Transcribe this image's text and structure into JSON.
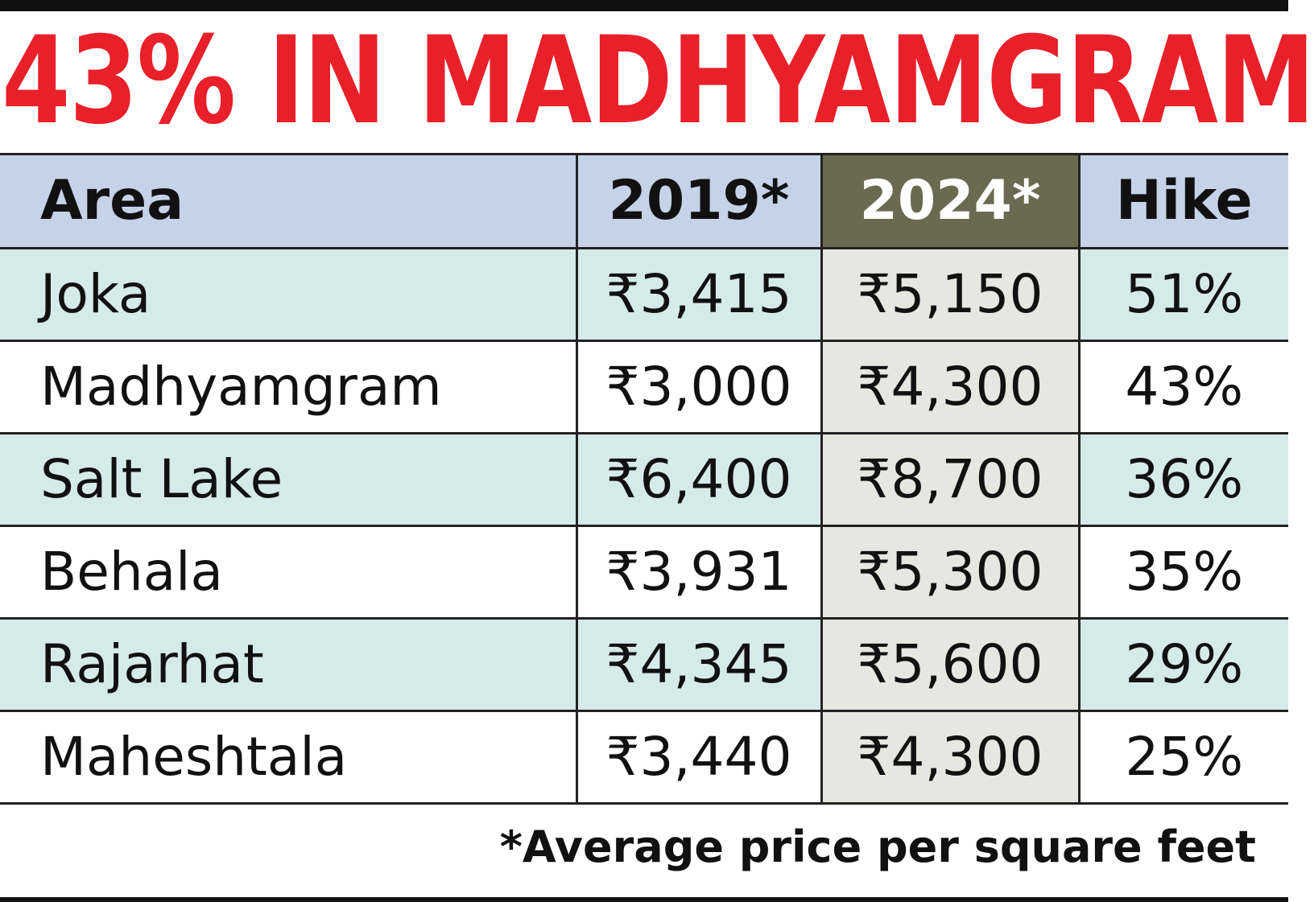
{
  "chart_data": {
    "type": "table",
    "title": "43% IN MADHYAMGRAM",
    "columns": [
      "Area",
      "2019*",
      "2024*",
      "Hike"
    ],
    "rows": [
      {
        "area": "Joka",
        "y2019": "₹3,415",
        "y2024": "₹5,150",
        "hike": "51%"
      },
      {
        "area": "Madhyamgram",
        "y2019": "₹3,000",
        "y2024": "₹4,300",
        "hike": "43%"
      },
      {
        "area": "Salt Lake",
        "y2019": "₹6,400",
        "y2024": "₹8,700",
        "hike": "36%"
      },
      {
        "area": "Behala",
        "y2019": "₹3,931",
        "y2024": "₹5,300",
        "hike": "35%"
      },
      {
        "area": "Rajarhat",
        "y2019": "₹4,345",
        "y2024": "₹5,600",
        "hike": "29%"
      },
      {
        "area": "Maheshtala",
        "y2019": "₹3,440",
        "y2024": "₹4,300",
        "hike": "25%"
      }
    ],
    "footnote": "*Average price per square feet"
  },
  "colors": {
    "headline": "#e8202a",
    "header_bg": "#c5d2e8",
    "header_2024_bg": "#6a6a50",
    "row_tint": "#d6eaea",
    "col_2024_bg": "#e6e7e1"
  }
}
